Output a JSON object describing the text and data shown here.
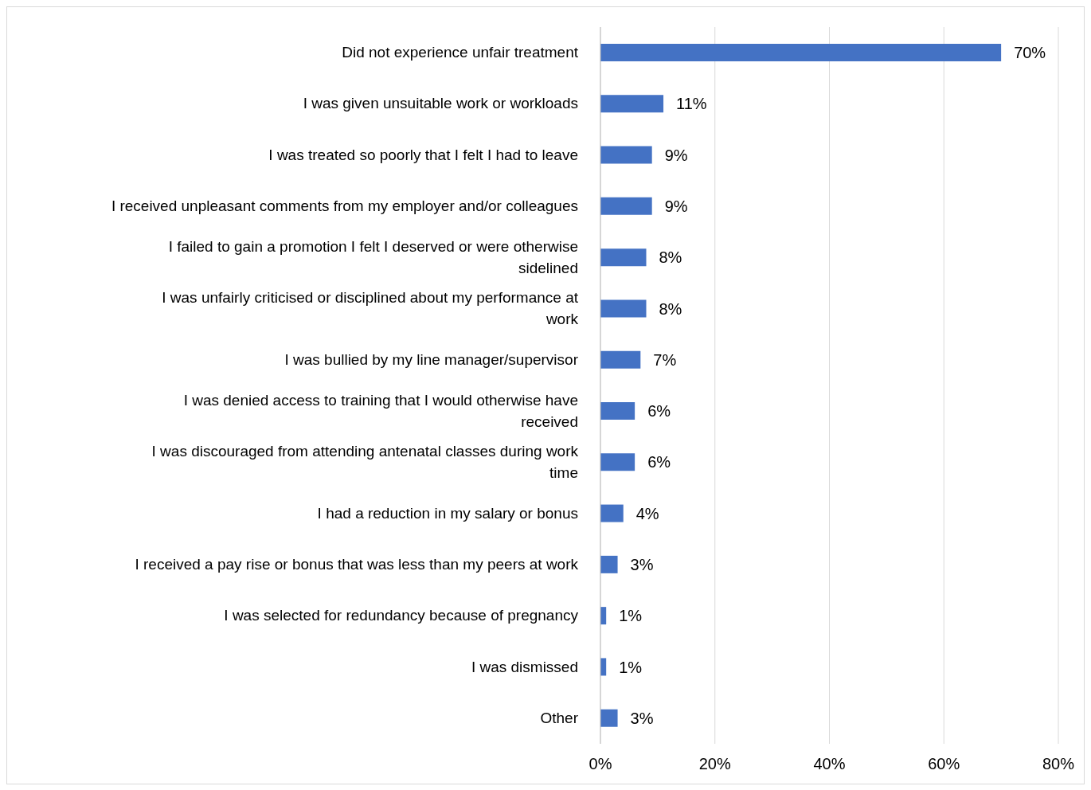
{
  "chart_data": {
    "type": "bar",
    "orientation": "horizontal",
    "categories": [
      "Did not experience unfair treatment",
      "I was given unsuitable work or workloads",
      "I was treated so poorly that I felt I had to leave",
      "I received unpleasant comments from my employer and/or colleagues",
      "I failed to gain a promotion I felt I deserved or were otherwise sidelined",
      "I was unfairly criticised or disciplined about my performance at work",
      "I was bullied by my line manager/supervisor",
      "I was denied access to training that I would otherwise have received",
      "I was discouraged from attending antenatal classes during work time",
      "I had a reduction in my salary or bonus",
      "I received a pay rise or bonus that was less than my peers at work",
      "I was selected for redundancy because of pregnancy",
      "I was dismissed",
      "Other"
    ],
    "values": [
      70,
      11,
      9,
      9,
      8,
      8,
      7,
      6,
      6,
      4,
      3,
      1,
      1,
      3
    ],
    "value_labels": [
      "70%",
      "11%",
      "9%",
      "9%",
      "8%",
      "8%",
      "7%",
      "6%",
      "6%",
      "4%",
      "3%",
      "1%",
      "1%",
      "3%"
    ],
    "color": "#4472c4",
    "xlim": [
      0,
      80
    ],
    "xticks": [
      {
        "value": 0,
        "label": "0%"
      },
      {
        "value": 20,
        "label": "20%"
      },
      {
        "value": 40,
        "label": "40%"
      },
      {
        "value": 60,
        "label": "60%"
      },
      {
        "value": 80,
        "label": "80%"
      }
    ],
    "grid": "x"
  }
}
